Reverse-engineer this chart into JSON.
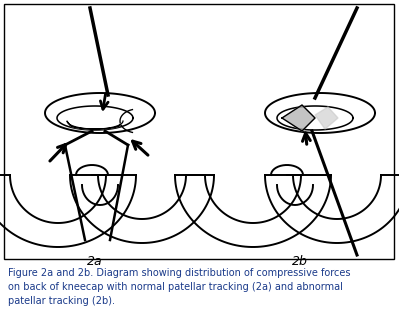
{
  "caption_line1": "Figure 2a and 2b. Diagram showing distribution of compressive forces",
  "caption_line2": "on back of kneecap with normal patellar tracking (2a) and abnormal",
  "caption_line3": "patellar tracking (2b).",
  "caption_color": "#1a3a8a",
  "background_color": "#ffffff",
  "border_color": "#000000",
  "label_2a": "2a",
  "label_2b": "2b",
  "figsize": [
    3.99,
    3.23
  ],
  "dpi": 100
}
